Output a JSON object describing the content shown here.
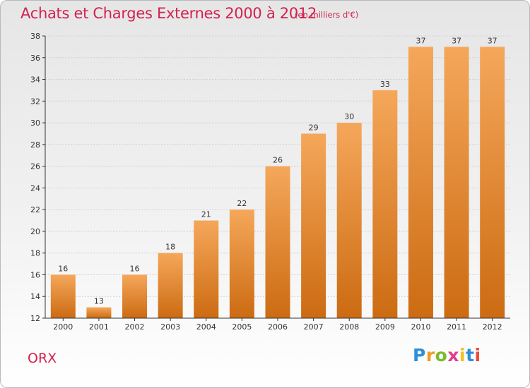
{
  "header": {
    "title": "Achats et Charges Externes 2000 à 2012",
    "subtitle": "(en milliers d'€)"
  },
  "footer": {
    "town": "ORX",
    "logo": "Proxiti"
  },
  "colors": {
    "accent": "#d3214f",
    "bar_top": "#f5a75a",
    "bar_bottom": "#cc6b12",
    "grid": "#d0d0d0",
    "axis": "#333333"
  },
  "chart_data": {
    "type": "bar",
    "categories": [
      "2000",
      "2001",
      "2002",
      "2003",
      "2004",
      "2005",
      "2006",
      "2007",
      "2008",
      "2009",
      "2010",
      "2011",
      "2012"
    ],
    "values": [
      16,
      13,
      16,
      18,
      21,
      22,
      26,
      29,
      30,
      33,
      37,
      37,
      37
    ],
    "title": "Achats et Charges Externes 2000 à 2012",
    "ylim": [
      12,
      38
    ],
    "yticks": [
      12,
      14,
      16,
      18,
      20,
      22,
      24,
      26,
      28,
      30,
      32,
      34,
      36,
      38
    ],
    "grid": true
  }
}
